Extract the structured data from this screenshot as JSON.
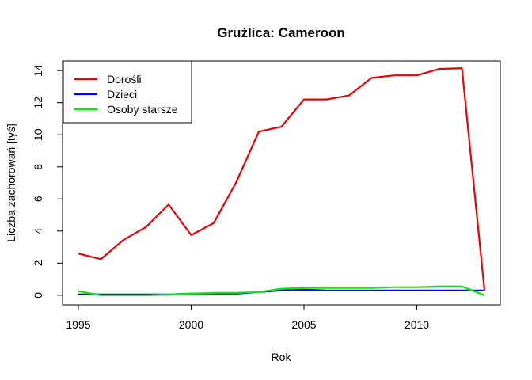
{
  "chart_data": {
    "type": "line",
    "title": "Gruźlica: Cameroon",
    "xlabel": "Rok",
    "ylabel": "Liczba zachorowań [tyś]",
    "x": [
      1995,
      1996,
      1997,
      1998,
      1999,
      2000,
      2001,
      2002,
      2003,
      2004,
      2005,
      2006,
      2007,
      2008,
      2009,
      2010,
      2011,
      2012,
      2013
    ],
    "xlim": [
      1994.3,
      2013.7
    ],
    "ylim": [
      -0.6,
      14.6
    ],
    "xticks": [
      1995,
      2000,
      2005,
      2010
    ],
    "yticks": [
      0,
      2,
      4,
      6,
      8,
      10,
      12,
      14
    ],
    "legend_position": "top-left",
    "grid": false,
    "series": [
      {
        "name": "Dorośli",
        "color": "#ee0000",
        "values": [
          2.6,
          2.25,
          3.45,
          4.25,
          5.65,
          3.75,
          4.5,
          7.05,
          10.2,
          10.5,
          12.2,
          12.2,
          12.45,
          13.55,
          13.7,
          13.7,
          14.1,
          14.15,
          0.3
        ]
      },
      {
        "name": "Dzieci",
        "color": "#0000ee",
        "values": [
          0.05,
          0.05,
          0.05,
          0.05,
          0.05,
          0.1,
          0.1,
          0.1,
          0.2,
          0.3,
          0.35,
          0.3,
          0.3,
          0.3,
          0.3,
          0.3,
          0.3,
          0.3,
          0.3
        ]
      },
      {
        "name": "Osoby starsze",
        "color": "#00ee00",
        "values": [
          0.25,
          0.0,
          0.0,
          0.0,
          0.05,
          0.1,
          0.15,
          0.15,
          0.2,
          0.4,
          0.45,
          0.45,
          0.45,
          0.45,
          0.5,
          0.5,
          0.55,
          0.55,
          0.0
        ]
      }
    ]
  }
}
